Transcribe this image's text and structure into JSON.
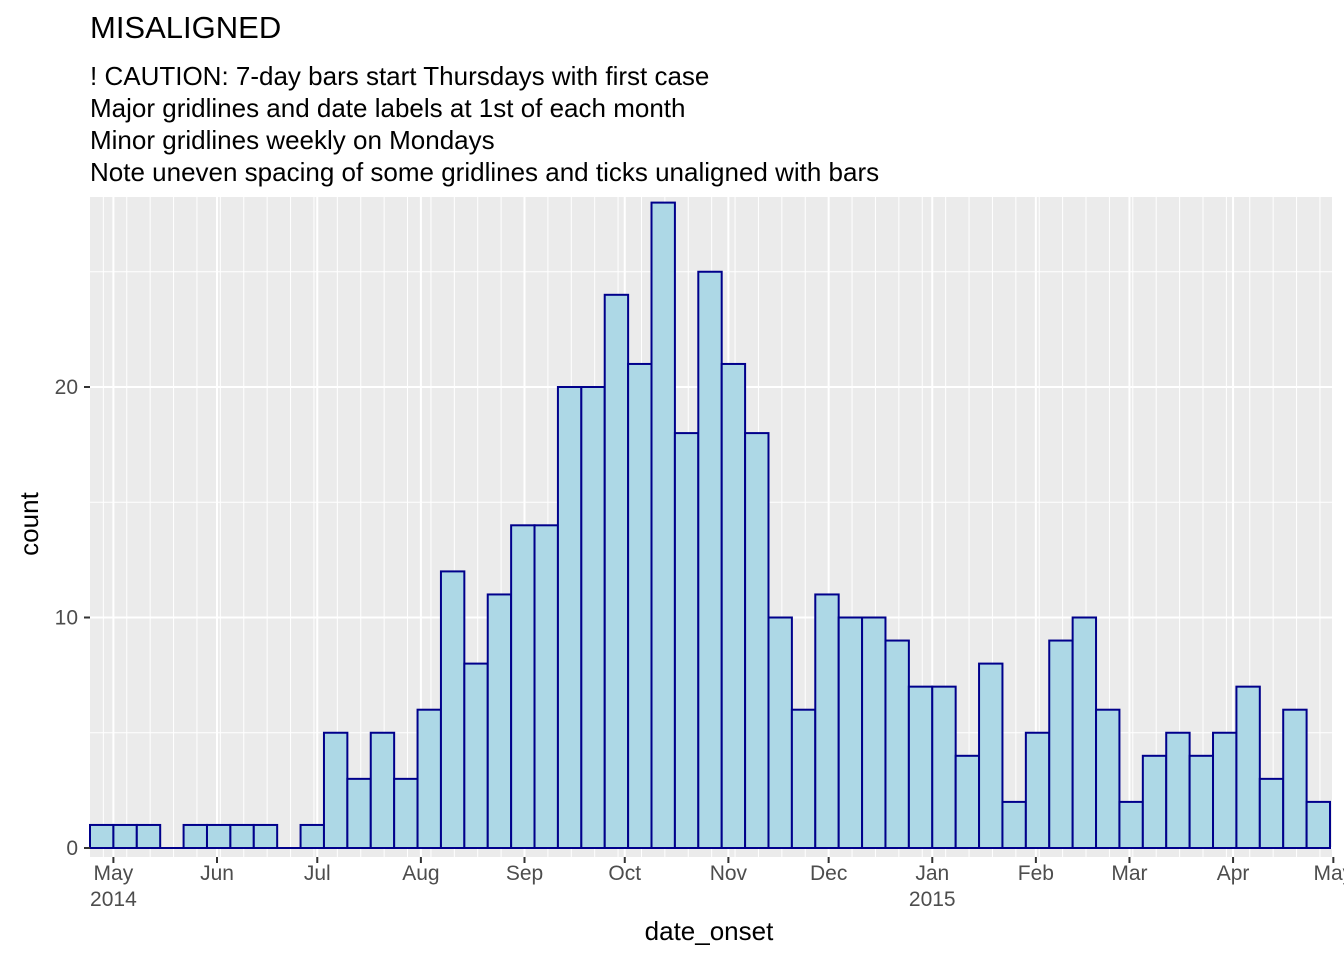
{
  "chart_data": {
    "type": "bar",
    "title": "MISALIGNED",
    "subtitle_lines": [
      "! CAUTION: 7-day bars start Thursdays with first case",
      "Major gridlines and date labels at 1st of each month",
      "Minor gridlines weekly on Mondays",
      "Note uneven spacing of some gridlines and ticks unaligned with bars"
    ],
    "xlabel": "date_onset",
    "ylabel": "count",
    "ylim": [
      0,
      28
    ],
    "y_ticks": [
      0,
      10,
      20
    ],
    "x_tick_labels": [
      {
        "date": "2014-05-01",
        "label": "May",
        "year": "2014"
      },
      {
        "date": "2014-06-01",
        "label": "Jun",
        "year": ""
      },
      {
        "date": "2014-07-01",
        "label": "Jul",
        "year": ""
      },
      {
        "date": "2014-08-01",
        "label": "Aug",
        "year": ""
      },
      {
        "date": "2014-09-01",
        "label": "Sep",
        "year": ""
      },
      {
        "date": "2014-10-01",
        "label": "Oct",
        "year": ""
      },
      {
        "date": "2014-11-01",
        "label": "Nov",
        "year": ""
      },
      {
        "date": "2014-12-01",
        "label": "Dec",
        "year": ""
      },
      {
        "date": "2015-01-01",
        "label": "Jan",
        "year": "2015"
      },
      {
        "date": "2015-02-01",
        "label": "Feb",
        "year": ""
      },
      {
        "date": "2015-03-01",
        "label": "Mar",
        "year": ""
      },
      {
        "date": "2015-04-01",
        "label": "Apr",
        "year": ""
      },
      {
        "date": "2015-05-01",
        "label": "May",
        "year": ""
      }
    ],
    "bin_days": 7,
    "bin_start_dates": [
      "2014-04-24",
      "2014-05-01",
      "2014-05-08",
      "2014-05-15",
      "2014-05-22",
      "2014-05-29",
      "2014-06-05",
      "2014-06-12",
      "2014-06-19",
      "2014-06-26",
      "2014-07-03",
      "2014-07-10",
      "2014-07-17",
      "2014-07-24",
      "2014-07-31",
      "2014-08-07",
      "2014-08-14",
      "2014-08-21",
      "2014-08-28",
      "2014-09-04",
      "2014-09-11",
      "2014-09-18",
      "2014-09-25",
      "2014-10-02",
      "2014-10-09",
      "2014-10-16",
      "2014-10-23",
      "2014-10-30",
      "2014-11-06",
      "2014-11-13",
      "2014-11-20",
      "2014-11-27",
      "2014-12-04",
      "2014-12-11",
      "2014-12-18",
      "2014-12-25",
      "2015-01-01",
      "2015-01-08",
      "2015-01-15",
      "2015-01-22",
      "2015-01-29",
      "2015-02-05",
      "2015-02-12",
      "2015-02-19",
      "2015-02-26",
      "2015-03-05",
      "2015-03-12",
      "2015-03-19",
      "2015-03-26",
      "2015-04-02",
      "2015-04-09",
      "2015-04-16",
      "2015-04-23"
    ],
    "values": [
      1,
      1,
      1,
      0,
      1,
      1,
      1,
      1,
      0,
      1,
      5,
      3,
      5,
      3,
      6,
      12,
      8,
      11,
      14,
      14,
      20,
      20,
      24,
      21,
      28,
      18,
      25,
      21,
      18,
      10,
      6,
      11,
      10,
      10,
      9,
      7,
      7,
      4,
      8,
      2,
      5,
      9,
      10,
      6,
      2,
      4,
      5,
      4,
      5,
      7,
      3,
      6,
      2
    ],
    "fill_color": "#ADD8E6",
    "border_color": "#00008B",
    "panel_color": "#EBEBEB",
    "grid": true
  }
}
